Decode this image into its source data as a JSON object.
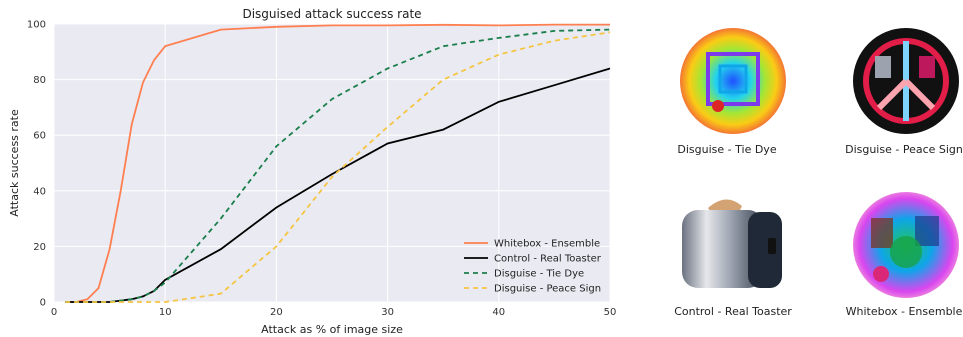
{
  "chart_data": {
    "type": "line",
    "title": "Disguised attack success rate",
    "xlabel": "Attack as % of image size",
    "ylabel": "Attack success rate",
    "xlim": [
      0,
      50
    ],
    "ylim": [
      0,
      100
    ],
    "xticks": [
      0,
      10,
      20,
      30,
      40,
      50
    ],
    "yticks": [
      0,
      20,
      40,
      60,
      80,
      100
    ],
    "grid": true,
    "legend_position": "bottom-right",
    "series": [
      {
        "name": "Whitebox - Ensemble",
        "color": "#ff7f50",
        "style": "solid",
        "points": [
          [
            1,
            0
          ],
          [
            2,
            0
          ],
          [
            3,
            1
          ],
          [
            4,
            5
          ],
          [
            5,
            19
          ],
          [
            6,
            40
          ],
          [
            7,
            64
          ],
          [
            8,
            79
          ],
          [
            9,
            87
          ],
          [
            10,
            92
          ],
          [
            15,
            98
          ],
          [
            20,
            99
          ],
          [
            25,
            99.5
          ],
          [
            30,
            99.5
          ],
          [
            35,
            99.7
          ],
          [
            40,
            99.5
          ],
          [
            45,
            99.8
          ],
          [
            50,
            99.8
          ]
        ]
      },
      {
        "name": "Control - Real Toaster",
        "color": "#000000",
        "style": "solid",
        "points": [
          [
            1,
            0
          ],
          [
            2,
            0
          ],
          [
            3,
            0
          ],
          [
            4,
            0
          ],
          [
            5,
            0
          ],
          [
            6,
            0.5
          ],
          [
            7,
            1
          ],
          [
            8,
            2
          ],
          [
            9,
            4
          ],
          [
            10,
            8
          ],
          [
            15,
            19
          ],
          [
            20,
            34
          ],
          [
            25,
            46
          ],
          [
            30,
            57
          ],
          [
            35,
            62
          ],
          [
            40,
            72
          ],
          [
            45,
            78
          ],
          [
            50,
            84
          ]
        ]
      },
      {
        "name": "Disguise - Tie Dye",
        "color": "#1a7f4b",
        "style": "dashed",
        "points": [
          [
            1,
            0
          ],
          [
            2,
            0
          ],
          [
            3,
            0
          ],
          [
            4,
            0
          ],
          [
            5,
            0
          ],
          [
            6,
            0.5
          ],
          [
            7,
            1
          ],
          [
            8,
            2
          ],
          [
            9,
            4
          ],
          [
            10,
            7
          ],
          [
            15,
            30
          ],
          [
            20,
            56
          ],
          [
            25,
            73
          ],
          [
            30,
            84
          ],
          [
            35,
            92
          ],
          [
            40,
            95
          ],
          [
            45,
            97.5
          ],
          [
            50,
            98
          ]
        ]
      },
      {
        "name": "Disguise - Peace Sign",
        "color": "#f5c542",
        "style": "dashed",
        "points": [
          [
            1,
            0
          ],
          [
            5,
            0
          ],
          [
            10,
            0
          ],
          [
            15,
            3
          ],
          [
            20,
            20
          ],
          [
            25,
            45
          ],
          [
            30,
            63
          ],
          [
            35,
            80
          ],
          [
            40,
            89
          ],
          [
            45,
            94
          ],
          [
            50,
            97
          ]
        ]
      }
    ]
  },
  "images": [
    {
      "caption": "Disguise - Tie Dye",
      "icon": "tie-dye-patch"
    },
    {
      "caption": "Disguise - Peace Sign",
      "icon": "peace-sign-patch"
    },
    {
      "caption": "Control - Real Toaster",
      "icon": "toaster-photo"
    },
    {
      "caption": "Whitebox - Ensemble",
      "icon": "ensemble-patch"
    }
  ]
}
